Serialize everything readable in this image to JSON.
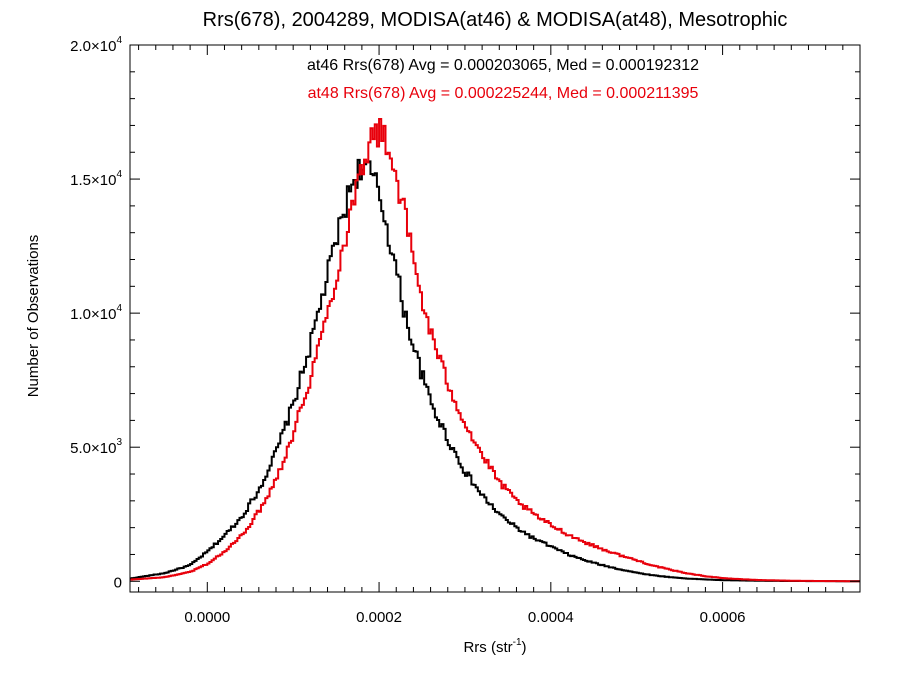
{
  "chart_data": {
    "type": "line",
    "title": "Rrs(678), 2004289, MODISA(at46) & MODISA(at48), Mesotrophic",
    "xlabel": {
      "base": "Rrs (str",
      "sup": "-1",
      "close": ")"
    },
    "ylabel": "Number of Observations",
    "xlim": [
      -9e-05,
      0.00076
    ],
    "ylim": [
      -400,
      20000
    ],
    "x_ticks": [
      {
        "value": 0.0,
        "label": "0.0000"
      },
      {
        "value": 0.0002,
        "label": "0.0002"
      },
      {
        "value": 0.0004,
        "label": "0.0004"
      },
      {
        "value": 0.0006,
        "label": "0.0006"
      }
    ],
    "y_ticks": [
      {
        "value": 0,
        "mant": "0",
        "exp": ""
      },
      {
        "value": 5000,
        "mant": "5.0×10",
        "exp": "3"
      },
      {
        "value": 10000,
        "mant": "1.0×10",
        "exp": "4"
      },
      {
        "value": 15000,
        "mant": "1.5×10",
        "exp": "4"
      },
      {
        "value": 20000,
        "mant": "2.0×10",
        "exp": "4"
      }
    ],
    "annotations": [
      {
        "text": "at46 Rrs(678) Avg = 0.000203065, Med = 0.000192312",
        "color": "#000000"
      },
      {
        "text": "at48 Rrs(678) Avg = 0.000225244, Med = 0.000211395",
        "color": "#e8000b"
      }
    ],
    "grid": false,
    "series": [
      {
        "color": "#000000",
        "x": [
          -9e-05,
          -5e-05,
          -2e-05,
          0.0,
          2e-05,
          4e-05,
          6e-05,
          8e-05,
          0.0001,
          0.00012,
          0.00014,
          0.00015,
          0.00016,
          0.00017,
          0.00018,
          0.00019,
          0.0002,
          0.00021,
          0.00022,
          0.00023,
          0.00024,
          0.00025,
          0.00026,
          0.00028,
          0.0003,
          0.00032,
          0.00034,
          0.00036,
          0.00038,
          0.0004,
          0.00042,
          0.00044,
          0.00046,
          0.00048,
          0.0005,
          0.00052,
          0.00054,
          0.00056,
          0.00058,
          0.0006,
          0.00064,
          0.00068,
          0.00072,
          0.00076
        ],
        "y": [
          100,
          300,
          600,
          1100,
          1700,
          2400,
          3400,
          4800,
          6600,
          8800,
          11400,
          12700,
          13900,
          15000,
          15500,
          15200,
          14500,
          13100,
          11600,
          10000,
          8800,
          7700,
          6700,
          5300,
          4100,
          3200,
          2500,
          2000,
          1600,
          1300,
          1000,
          780,
          600,
          450,
          320,
          220,
          150,
          100,
          70,
          40,
          20,
          10,
          5,
          0
        ]
      },
      {
        "color": "#e8000b",
        "x": [
          -9e-05,
          -5e-05,
          -2e-05,
          0.0,
          2e-05,
          4e-05,
          6e-05,
          8e-05,
          0.0001,
          0.00012,
          0.00014,
          0.00016,
          0.00017,
          0.00018,
          0.00019,
          0.0002,
          0.00021,
          0.00022,
          0.00023,
          0.00024,
          0.00025,
          0.00026,
          0.00027,
          0.00028,
          0.0003,
          0.00032,
          0.00034,
          0.00036,
          0.00038,
          0.0004,
          0.00042,
          0.00044,
          0.00046,
          0.00048,
          0.0005,
          0.00052,
          0.00054,
          0.00056,
          0.00058,
          0.0006,
          0.00062,
          0.00064,
          0.00068,
          0.00072,
          0.00076
        ],
        "y": [
          60,
          150,
          350,
          650,
          1100,
          1700,
          2600,
          3800,
          5500,
          7600,
          10000,
          12700,
          14200,
          15600,
          16400,
          16800,
          16300,
          15100,
          13700,
          12000,
          10500,
          9300,
          8300,
          7400,
          5900,
          4700,
          3700,
          3000,
          2500,
          2100,
          1750,
          1450,
          1200,
          980,
          780,
          580,
          420,
          290,
          190,
          120,
          80,
          50,
          20,
          8,
          0
        ]
      }
    ]
  }
}
